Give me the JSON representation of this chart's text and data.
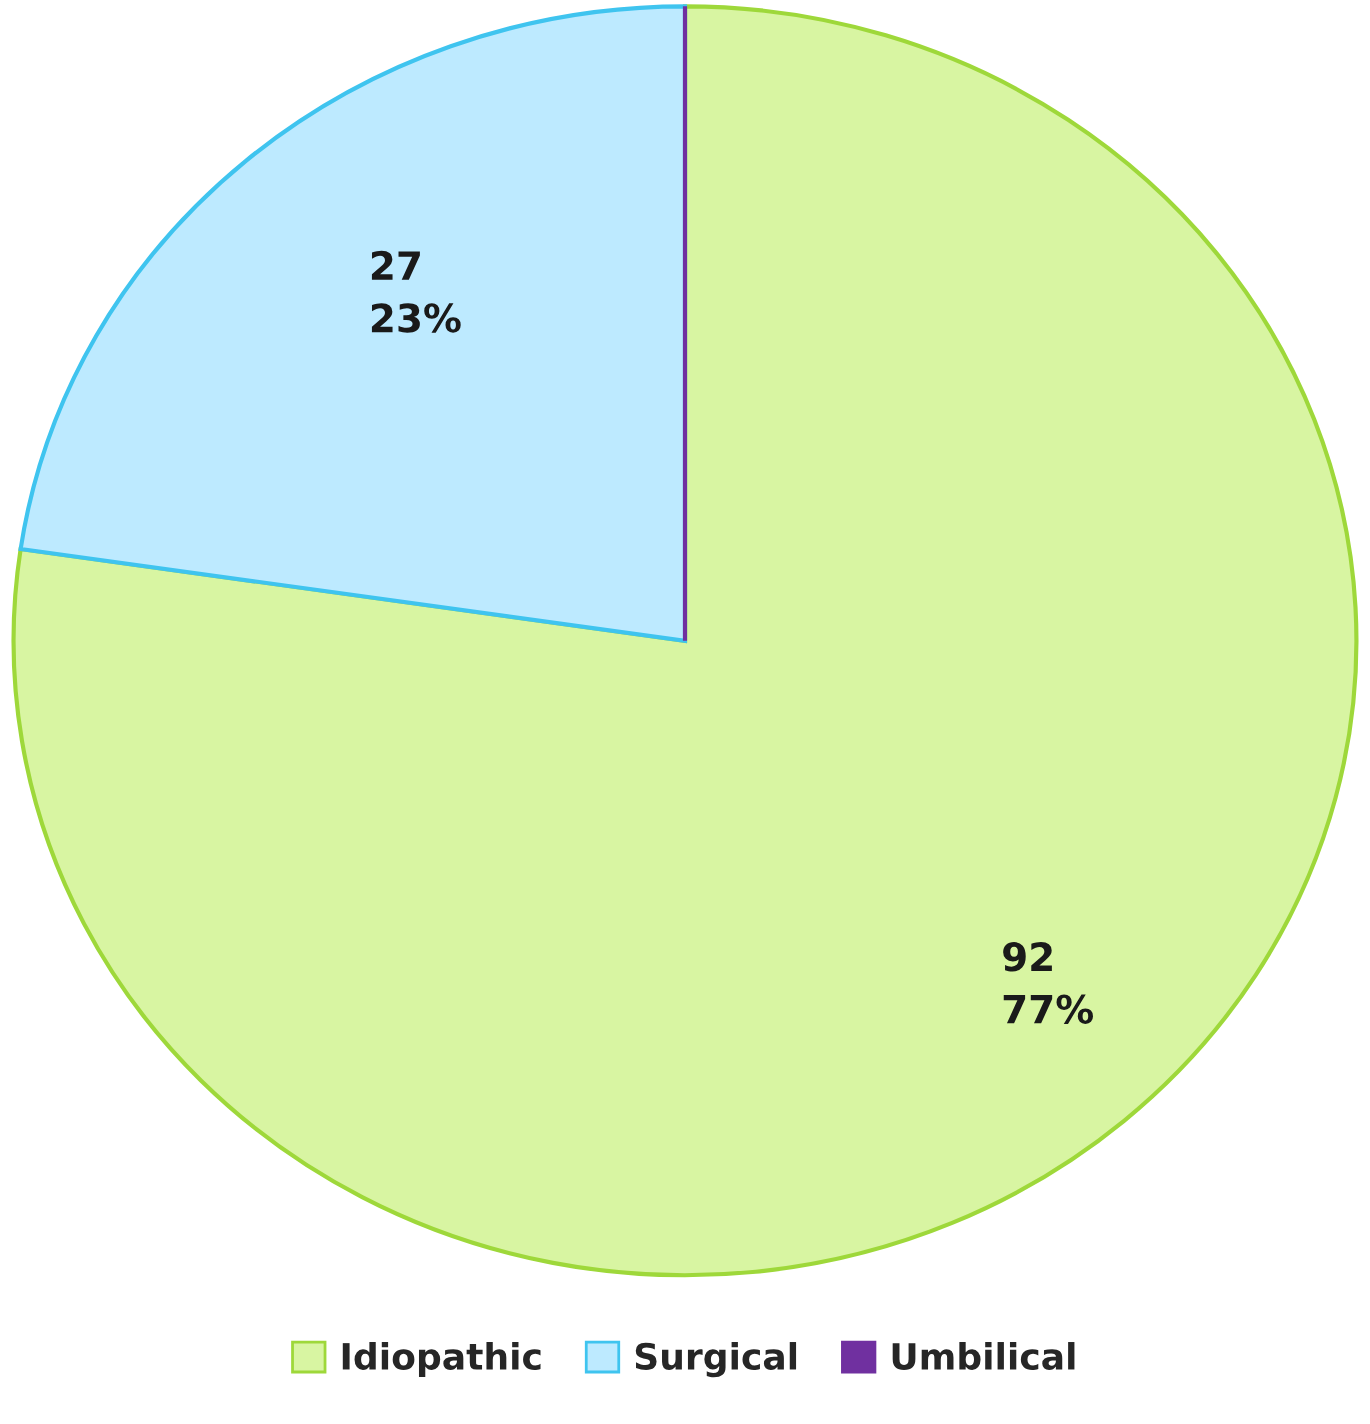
{
  "chart_data": {
    "type": "pie",
    "categories": [
      "Idiopathic",
      "Surgical",
      "Umbilical"
    ],
    "values": [
      92,
      27,
      0
    ],
    "colors": [
      "#d8f5a2",
      "#bdeaff",
      "#7030a0"
    ],
    "value_labels": [
      "92\n77%",
      "27\n23%",
      null
    ],
    "legend": "bottom"
  }
}
